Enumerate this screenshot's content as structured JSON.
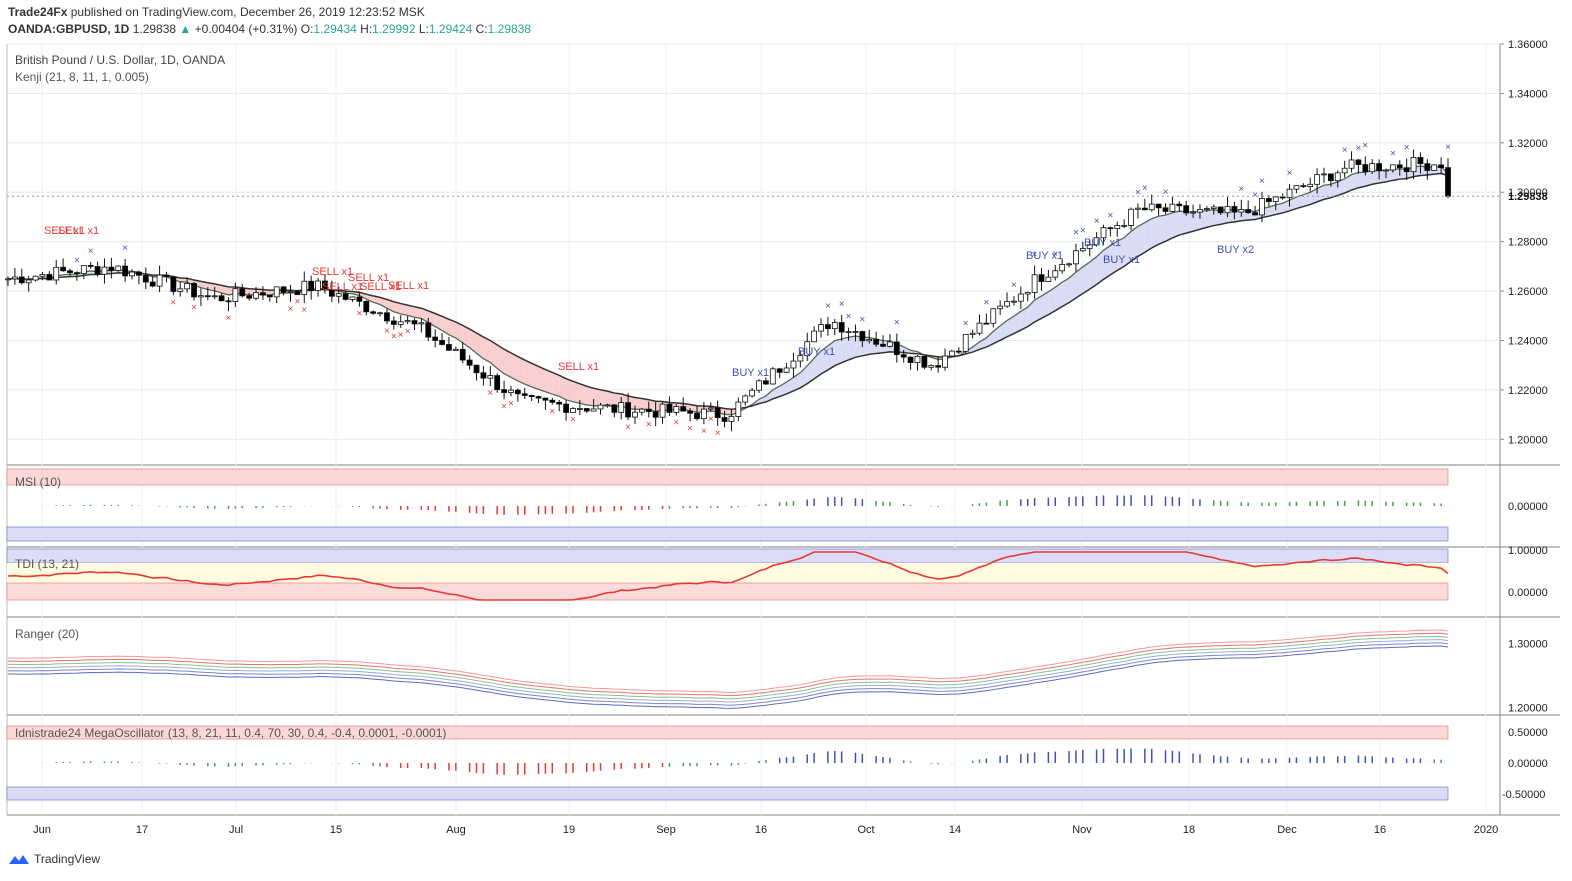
{
  "header": {
    "publisher": "Trade24Fx",
    "published_text": "published on TradingView.com, December 26, 2019 12:23:52 MSK",
    "symbol": "OANDA:GBPUSD, 1D",
    "last": "1.29838",
    "change": "+0.00404 (+0.31%)",
    "o_label": "O:",
    "o": "1.29434",
    "h_label": "H:",
    "h": "1.29992",
    "l_label": "L:",
    "l": "1.29424",
    "c_label": "C:",
    "c": "1.29838"
  },
  "main_pane": {
    "title": "British Pound / U.S. Dollar, 1D, OANDA",
    "indicator": "Kenji (21, 8, 11, 1, 0.005)",
    "price_ticks": [
      "1.36000",
      "1.34000",
      "1.32000",
      "1.30000",
      "1.28000",
      "1.26000",
      "1.24000",
      "1.22000",
      "1.20000"
    ],
    "current_price": "1.29838"
  },
  "pane_labels": {
    "msi": "MSI (10)",
    "tdi": "TDI (13, 21)",
    "ranger": "Ranger (20)",
    "mega": "Idnistrade24 MegaOscillator (13, 8, 21, 11, 0.4, 70, 30, 0.4, -0.4, 0.0001, -0.0001)"
  },
  "pane_ticks": {
    "msi": [
      "0.00000"
    ],
    "tdi": [
      "1.00000",
      "0.00000"
    ],
    "ranger": [
      "1.30000",
      "1.20000"
    ],
    "mega": [
      "0.50000",
      "0.00000",
      "-0.50000"
    ]
  },
  "x_axis": [
    "Jun",
    "17",
    "Jul",
    "15",
    "Aug",
    "19",
    "Sep",
    "16",
    "Oct",
    "14",
    "Nov",
    "18",
    "Dec",
    "16",
    "2020"
  ],
  "signals": {
    "sell": [
      "SELL x1",
      "SELL x1",
      "SELL x1",
      "SELL x1",
      "SELL x1",
      "SELL x1",
      "SELL x1",
      "SELL x1"
    ],
    "buy": [
      "BUY x1",
      "BUY x1",
      "BUY x1",
      "BUY x1",
      "BUY x1",
      "BUY x2"
    ]
  },
  "footer": {
    "brand": "TradingView"
  },
  "colors": {
    "up": "#26a69a",
    "bear_body": "#000000",
    "sell": "#e53935",
    "buy": "#3f51b5",
    "cloud_red": "#f8c6c6",
    "cloud_green": "#cfe8cf",
    "cloud_blue": "#d3d6f5"
  },
  "chart_data": {
    "type": "candlestick",
    "x": [
      "2019-05-28",
      "2019-06-03",
      "2019-06-17",
      "2019-07-01",
      "2019-07-15",
      "2019-08-01",
      "2019-08-19",
      "2019-09-02",
      "2019-09-16",
      "2019-10-01",
      "2019-10-14",
      "2019-11-01",
      "2019-11-18",
      "2019-12-02",
      "2019-12-16",
      "2019-12-26"
    ],
    "close": [
      1.265,
      1.27,
      1.257,
      1.262,
      1.245,
      1.215,
      1.212,
      1.21,
      1.248,
      1.23,
      1.265,
      1.293,
      1.291,
      1.31,
      1.312,
      1.298
    ],
    "ylim": [
      1.19,
      1.36
    ],
    "last_close": 1.29838
  }
}
